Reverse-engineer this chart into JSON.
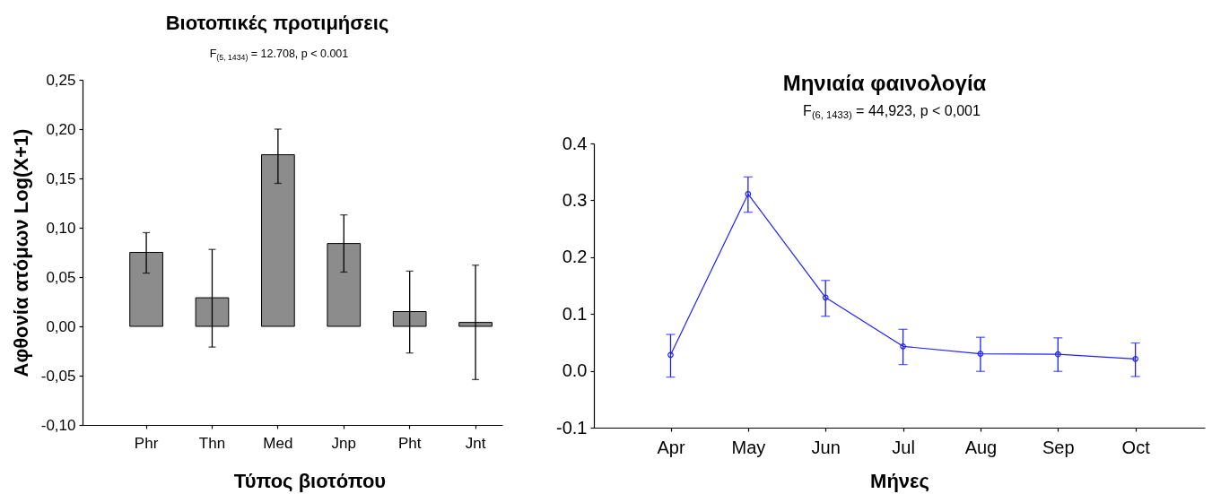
{
  "chart_data": [
    {
      "type": "bar",
      "title": "Βιοτοπικές προτιμήσεις",
      "subtitle": "F$_{(5, 1434)}$ = 12.708, p < 0.001",
      "xlabel": "Τύπος βιοτόπου",
      "ylabel": "Αφθονία ατόμων Log(X+1)",
      "categories": [
        "Phr",
        "Thn",
        "Med",
        "Jnp",
        "Pht",
        "Jnt"
      ],
      "values": [
        0.075,
        0.029,
        0.174,
        0.084,
        0.015,
        0.004
      ],
      "errors": [
        [
          0.054,
          0.095
        ],
        [
          -0.021,
          0.078
        ],
        [
          0.145,
          0.2
        ],
        [
          0.055,
          0.113
        ],
        [
          -0.027,
          0.056
        ],
        [
          -0.054,
          0.062
        ]
      ],
      "color": "#8c8c8c",
      "ylim": [
        -0.1,
        0.25
      ],
      "yticks": [
        {
          "value": -0.1,
          "label": "-0,10"
        },
        {
          "value": -0.05,
          "label": "-0,05"
        },
        {
          "value": 0,
          "label": "0,00"
        },
        {
          "value": 0.05,
          "label": "0,05"
        },
        {
          "value": 0.1,
          "label": "0,10"
        },
        {
          "value": 0.15,
          "label": "0,15"
        },
        {
          "value": 0.2,
          "label": "0,20"
        },
        {
          "value": 0.25,
          "label": "0,25"
        }
      ]
    },
    {
      "type": "line",
      "title": "Μηνιαία φαινολογία",
      "subtitle": "F$_{(6, 1433)}$ = 44,923, p < 0,001",
      "xlabel": "Μήνες",
      "categories": [
        "Apr",
        "May",
        "Jun",
        "Jul",
        "Aug",
        "Sep",
        "Oct"
      ],
      "values": [
        0.028,
        0.311,
        0.129,
        0.043,
        0.03,
        0.029,
        0.021
      ],
      "errors": [
        [
          -0.011,
          0.064
        ],
        [
          0.279,
          0.341
        ],
        [
          0.096,
          0.159
        ],
        [
          0.011,
          0.073
        ],
        [
          -0.001,
          0.059
        ],
        [
          -0.001,
          0.058
        ],
        [
          -0.01,
          0.049
        ]
      ],
      "color": "#2020ff",
      "marker": "circle",
      "ylim": [
        -0.1,
        0.4
      ],
      "yticks": [
        -0.1,
        {
          "value": 0,
          "label": "0.0"
        },
        0.1,
        0.2,
        0.3,
        0.4
      ]
    }
  ]
}
